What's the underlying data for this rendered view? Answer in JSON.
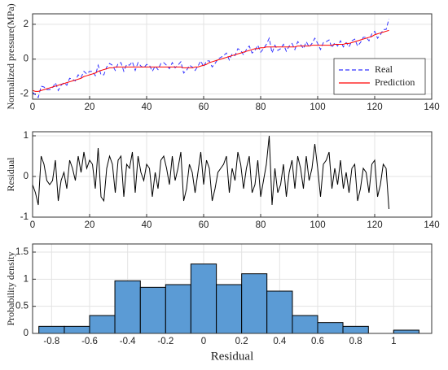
{
  "chart_data": [
    {
      "type": "line",
      "ylabel": "Normalized pressure(MPa)",
      "x": [
        0,
        1,
        2,
        3,
        4,
        5,
        6,
        7,
        8,
        9,
        10,
        11,
        12,
        13,
        14,
        15,
        16,
        17,
        18,
        19,
        20,
        21,
        22,
        23,
        24,
        25,
        26,
        27,
        28,
        29,
        30,
        31,
        32,
        33,
        34,
        35,
        36,
        37,
        38,
        39,
        40,
        41,
        42,
        43,
        44,
        45,
        46,
        47,
        48,
        49,
        50,
        51,
        52,
        53,
        54,
        55,
        56,
        57,
        58,
        59,
        60,
        61,
        62,
        63,
        64,
        65,
        66,
        67,
        68,
        69,
        70,
        71,
        72,
        73,
        74,
        75,
        76,
        77,
        78,
        79,
        80,
        81,
        82,
        83,
        84,
        85,
        86,
        87,
        88,
        89,
        90,
        91,
        92,
        93,
        94,
        95,
        96,
        97,
        98,
        99,
        100,
        101,
        102,
        103,
        104,
        105,
        106,
        107,
        108,
        109,
        110,
        111,
        112,
        113,
        114,
        115,
        116,
        117,
        118,
        119,
        120,
        121,
        122,
        123,
        124,
        125
      ],
      "series": [
        {
          "name": "Real",
          "color": "#3333ff",
          "linestyle": "dashed",
          "values": [
            -1.9,
            -2.05,
            -2.2,
            -1.55,
            -1.6,
            -1.75,
            -1.75,
            -1.65,
            -1.35,
            -1.8,
            -1.5,
            -1.35,
            -1.5,
            -1.1,
            -1.15,
            -1.25,
            -0.9,
            -1.05,
            -0.7,
            -0.85,
            -0.7,
            -0.7,
            -0.95,
            -0.35,
            -0.9,
            -0.9,
            -0.45,
            -0.25,
            -0.35,
            -0.65,
            -0.25,
            -0.2,
            -0.7,
            -0.3,
            -0.35,
            -0.15,
            -0.65,
            -0.2,
            -0.4,
            -0.5,
            -0.3,
            -0.35,
            -0.7,
            -0.4,
            -0.6,
            -0.25,
            -0.2,
            -0.35,
            -0.55,
            -0.2,
            -0.5,
            -0.35,
            -0.15,
            -0.8,
            -0.65,
            -0.35,
            -0.45,
            -0.65,
            -0.4,
            -0.1,
            -0.45,
            -0.1,
            -0.1,
            -0.45,
            -0.25,
            0,
            0.1,
            0.2,
            0.35,
            -0.05,
            0.3,
            0.2,
            0.6,
            0.5,
            0.25,
            0.55,
            0.75,
            0.35,
            0.5,
            0.8,
            0.4,
            0.6,
            0.85,
            1.2,
            0.35,
            0.8,
            0.5,
            0.6,
            0.85,
            0.45,
            0.75,
            0.9,
            0.55,
            1.0,
            0.85,
            0.6,
            1.0,
            0.7,
            0.9,
            1.2,
            0.9,
            0.55,
            0.95,
            1.0,
            1.1,
            0.65,
            0.95,
            0.75,
            1.05,
            0.7,
            0.95,
            0.7,
            1.05,
            1.15,
            0.75,
            0.95,
            1.25,
            1.25,
            1.05,
            1.45,
            1.6,
            1.2,
            1.4,
            1.7,
            1.7,
            2.3
          ]
        },
        {
          "name": "Prediction",
          "color": "#ff0000",
          "linestyle": "solid",
          "values": [
            -1.8,
            -1.85,
            -1.85,
            -1.8,
            -1.75,
            -1.7,
            -1.65,
            -1.6,
            -1.55,
            -1.5,
            -1.45,
            -1.4,
            -1.35,
            -1.3,
            -1.25,
            -1.2,
            -1.15,
            -1.1,
            -1.0,
            -0.95,
            -0.9,
            -0.85,
            -0.8,
            -0.7,
            -0.65,
            -0.6,
            -0.55,
            -0.5,
            -0.5,
            -0.45,
            -0.45,
            -0.45,
            -0.45,
            -0.45,
            -0.45,
            -0.45,
            -0.45,
            -0.45,
            -0.45,
            -0.45,
            -0.45,
            -0.45,
            -0.45,
            -0.45,
            -0.45,
            -0.45,
            -0.45,
            -0.45,
            -0.45,
            -0.45,
            -0.45,
            -0.45,
            -0.45,
            -0.5,
            -0.5,
            -0.5,
            -0.5,
            -0.45,
            -0.45,
            -0.4,
            -0.35,
            -0.3,
            -0.2,
            -0.15,
            -0.1,
            -0.05,
            0,
            0.05,
            0.1,
            0.15,
            0.2,
            0.25,
            0.3,
            0.35,
            0.4,
            0.45,
            0.5,
            0.55,
            0.6,
            0.6,
            0.65,
            0.65,
            0.7,
            0.7,
            0.7,
            0.7,
            0.7,
            0.7,
            0.7,
            0.7,
            0.7,
            0.7,
            0.7,
            0.75,
            0.75,
            0.75,
            0.75,
            0.75,
            0.8,
            0.8,
            0.8,
            0.8,
            0.8,
            0.8,
            0.8,
            0.8,
            0.85,
            0.85,
            0.85,
            0.85,
            0.9,
            0.9,
            0.95,
            1.0,
            1.05,
            1.1,
            1.15,
            1.2,
            1.25,
            1.3,
            1.4,
            1.45,
            1.5,
            1.55,
            1.6,
            1.65
          ]
        }
      ],
      "xlim": [
        0,
        140
      ],
      "xticks": [
        0,
        20,
        40,
        60,
        80,
        100,
        120,
        140
      ],
      "ylim": [
        -2.3,
        2.6
      ],
      "yticks": [
        -2,
        0,
        2
      ],
      "grid": true,
      "legend": "lower right"
    },
    {
      "type": "line",
      "ylabel": "Residual",
      "x": [
        0,
        1,
        2,
        3,
        4,
        5,
        6,
        7,
        8,
        9,
        10,
        11,
        12,
        13,
        14,
        15,
        16,
        17,
        18,
        19,
        20,
        21,
        22,
        23,
        24,
        25,
        26,
        27,
        28,
        29,
        30,
        31,
        32,
        33,
        34,
        35,
        36,
        37,
        38,
        39,
        40,
        41,
        42,
        43,
        44,
        45,
        46,
        47,
        48,
        49,
        50,
        51,
        52,
        53,
        54,
        55,
        56,
        57,
        58,
        59,
        60,
        61,
        62,
        63,
        64,
        65,
        66,
        67,
        68,
        69,
        70,
        71,
        72,
        73,
        74,
        75,
        76,
        77,
        78,
        79,
        80,
        81,
        82,
        83,
        84,
        85,
        86,
        87,
        88,
        89,
        90,
        91,
        92,
        93,
        94,
        95,
        96,
        97,
        98,
        99,
        100,
        101,
        102,
        103,
        104,
        105,
        106,
        107,
        108,
        109,
        110,
        111,
        112,
        113,
        114,
        115,
        116,
        117,
        118,
        119,
        120,
        121,
        122,
        123,
        124,
        125
      ],
      "series": [
        {
          "color": "#000000",
          "linestyle": "solid",
          "values": [
            -0.2,
            -0.4,
            -0.7,
            0.5,
            0.3,
            -0.1,
            -0.2,
            -0.1,
            0.4,
            -0.6,
            -0.1,
            0.1,
            -0.3,
            0.4,
            0.2,
            -0.1,
            0.5,
            0.1,
            0.6,
            0.2,
            0.4,
            0.3,
            -0.3,
            0.7,
            -0.5,
            -0.6,
            0.2,
            0.5,
            0.3,
            -0.4,
            0.4,
            0.5,
            -0.5,
            0.3,
            0.2,
            0.6,
            -0.4,
            0.5,
            0.1,
            -0.1,
            0.3,
            0.2,
            -0.5,
            0.1,
            -0.3,
            0.4,
            0.5,
            0.2,
            -0.2,
            0.5,
            -0.1,
            0.2,
            0.6,
            -0.6,
            -0.3,
            0.3,
            0.1,
            -0.4,
            0.1,
            0.6,
            -0.2,
            0.4,
            0.2,
            -0.6,
            -0.3,
            0.1,
            0.2,
            0.3,
            0.5,
            -0.4,
            0.2,
            -0.1,
            0.6,
            0.3,
            -0.3,
            0.2,
            0.5,
            -0.4,
            -0.2,
            0.4,
            -0.5,
            -0.1,
            0.3,
            1.0,
            -0.7,
            0.2,
            -0.4,
            -0.2,
            0.3,
            -0.5,
            0.1,
            0.4,
            -0.3,
            0.5,
            0.2,
            -0.3,
            0.5,
            -0.1,
            0.2,
            0.8,
            0.2,
            -0.5,
            0.3,
            0.4,
            0.6,
            -0.3,
            0.2,
            -0.2,
            0.4,
            -0.3,
            0.1,
            -0.4,
            0.2,
            0.3,
            -0.6,
            -0.3,
            0.2,
            0.1,
            -0.4,
            0.3,
            0.4,
            -0.5,
            -0.2,
            0.3,
            0.2,
            -0.8
          ]
        }
      ],
      "xlim": [
        0,
        140
      ],
      "xticks": [
        0,
        20,
        40,
        60,
        80,
        100,
        120,
        140
      ],
      "ylim": [
        -1,
        1.1
      ],
      "yticks": [
        -1,
        0,
        1
      ],
      "grid": true
    },
    {
      "type": "histogram",
      "xlabel": "Residual",
      "ylabel": "Probability density",
      "bins": [
        -0.867,
        -0.733,
        -0.6,
        -0.467,
        -0.333,
        -0.2,
        -0.067,
        0.067,
        0.2,
        0.333,
        0.467,
        0.6,
        0.733,
        0.867,
        1.0,
        1.133
      ],
      "values": [
        0.13,
        0.13,
        0.33,
        0.97,
        0.85,
        0.9,
        1.28,
        0.9,
        1.1,
        0.78,
        0.33,
        0.2,
        0.13,
        0,
        0.06
      ],
      "color": "#5b9bd5",
      "edgecolor": "#000000",
      "xlim": [
        -0.9,
        1.2
      ],
      "xticks": [
        -0.8,
        -0.6,
        -0.4,
        -0.2,
        0,
        0.2,
        0.4,
        0.6,
        0.8,
        1
      ],
      "ylim": [
        0,
        1.65
      ],
      "yticks": [
        0,
        0.5,
        1,
        1.5
      ],
      "grid": true
    }
  ]
}
